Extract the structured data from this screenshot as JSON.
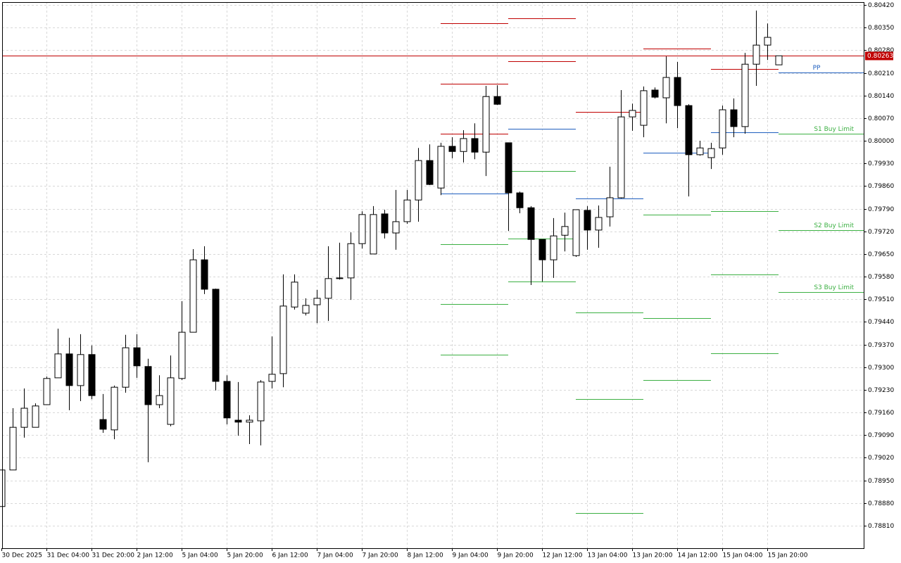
{
  "chart_data": {
    "type": "candlestick",
    "categories": [
      "30 Dec 2025",
      null,
      null,
      null,
      "31 Dec 04:00",
      null,
      null,
      null,
      "31 Dec 20:00",
      null,
      null,
      null,
      "2 Jan 12:00",
      null,
      null,
      null,
      "5 Jan 04:00",
      null,
      null,
      null,
      "5 Jan 20:00",
      null,
      null,
      null,
      "6 Jan 12:00",
      null,
      null,
      null,
      "7 Jan 04:00",
      null,
      null,
      null,
      "7 Jan 20:00",
      null,
      null,
      null,
      "8 Jan 12:00",
      null,
      null,
      null,
      "9 Jan 04:00",
      null,
      null,
      null,
      "9 Jan 20:00",
      null,
      null,
      null,
      "12 Jan 12:00",
      null,
      null,
      null,
      "13 Jan 04:00",
      null,
      null,
      null,
      "13 Jan 20:00",
      null,
      null,
      null,
      "14 Jan 12:00",
      null,
      null,
      null,
      "15 Jan 04:00",
      null,
      null,
      null,
      "15 Jan 20:00",
      null
    ],
    "open": [
      0.78869,
      0.78982,
      0.79114,
      0.79114,
      0.79184,
      0.79267,
      0.79341,
      0.79243,
      0.79339,
      0.79138,
      0.79106,
      0.79238,
      0.7936,
      0.79302,
      0.79184,
      0.79123,
      0.79265,
      0.79408,
      0.79632,
      0.79541,
      0.79256,
      0.79136,
      0.7913,
      0.79134,
      0.79256,
      0.7928,
      0.79486,
      0.79467,
      0.79493,
      0.79513,
      0.79574,
      0.79576,
      0.79682,
      0.7965,
      0.79774,
      0.79715,
      0.7975,
      0.79817,
      0.79939,
      0.79854,
      0.79983,
      0.79967,
      0.80007,
      0.79965,
      0.80137,
      0.79994,
      0.79839,
      0.79793,
      0.79695,
      0.79632,
      0.79708,
      0.79645,
      0.79785,
      0.79724,
      0.79765,
      0.79824,
      0.80074,
      0.80048,
      0.80157,
      0.80133,
      0.80196,
      0.80109,
      0.79957,
      0.79948,
      0.79978,
      0.80096,
      0.80044,
      0.80237,
      0.80296,
      0.80235
    ],
    "high": [
      0.78982,
      0.79173,
      0.79234,
      0.79188,
      0.79271,
      0.79419,
      0.79391,
      0.79402,
      0.79367,
      0.79217,
      0.79243,
      0.794,
      0.79402,
      0.79326,
      0.79275,
      0.79336,
      0.79504,
      0.79665,
      0.79674,
      0.79543,
      0.79275,
      0.79254,
      0.79151,
      0.7926,
      0.79395,
      0.79587,
      0.79587,
      0.79513,
      0.79539,
      0.79674,
      0.79685,
      0.79717,
      0.79782,
      0.79798,
      0.79787,
      0.79848,
      0.79848,
      0.79978,
      0.79989,
      0.79994,
      0.80011,
      0.80033,
      0.80054,
      0.8017,
      0.80172,
      0.79994,
      0.79843,
      0.79798,
      0.79695,
      0.79761,
      0.79778,
      0.79787,
      0.79798,
      0.798,
      0.7992,
      0.80157,
      0.80115,
      0.80168,
      0.80165,
      0.80261,
      0.80244,
      0.80113,
      0.8,
      0.79994,
      0.80109,
      0.80131,
      0.80272,
      0.80403,
      0.80363,
      0.80263
    ],
    "low": [
      0.78869,
      0.78982,
      0.79082,
      0.79114,
      0.79184,
      0.79267,
      0.79167,
      0.79195,
      0.79201,
      0.79097,
      0.79077,
      0.79221,
      0.79267,
      0.79006,
      0.79173,
      0.79117,
      0.7926,
      0.79408,
      0.79526,
      0.79228,
      0.79123,
      0.79088,
      0.79062,
      0.79058,
      0.79234,
      0.79238,
      0.79478,
      0.7946,
      0.79436,
      0.79443,
      0.79571,
      0.79508,
      0.79667,
      0.7965,
      0.79698,
      0.79663,
      0.79743,
      0.7975,
      0.79863,
      0.79832,
      0.79946,
      0.79933,
      0.79943,
      0.79891,
      0.80111,
      0.79721,
      0.79776,
      0.79554,
      0.79565,
      0.79576,
      0.79658,
      0.79641,
      0.79663,
      0.79669,
      0.79735,
      0.79822,
      0.80031,
      0.80011,
      0.80131,
      0.80054,
      0.80039,
      0.79828,
      0.79954,
      0.79913,
      0.79957,
      0.80011,
      0.80022,
      0.8017,
      0.8025,
      0.80235
    ],
    "close": [
      0.78982,
      0.79114,
      0.79173,
      0.7918,
      0.79265,
      0.79341,
      0.79243,
      0.79339,
      0.79212,
      0.79108,
      0.79238,
      0.7936,
      0.79304,
      0.79184,
      0.79212,
      0.79267,
      0.79408,
      0.79632,
      0.79541,
      0.79256,
      0.79143,
      0.7913,
      0.79136,
      0.79254,
      0.79278,
      0.79489,
      0.79563,
      0.79491,
      0.79513,
      0.79574,
      0.79576,
      0.79682,
      0.79772,
      0.79772,
      0.79715,
      0.7975,
      0.79817,
      0.79939,
      0.79865,
      0.79983,
      0.79967,
      0.80007,
      0.79965,
      0.80137,
      0.80113,
      0.79839,
      0.79793,
      0.79695,
      0.79632,
      0.79706,
      0.79735,
      0.79787,
      0.79724,
      0.79763,
      0.79824,
      0.80074,
      0.80094,
      0.80155,
      0.80135,
      0.80196,
      0.80109,
      0.79957,
      0.79978,
      0.79976,
      0.80096,
      0.80044,
      0.80237,
      0.80296,
      0.8032,
      0.80263
    ],
    "up_color": "#ffffff",
    "down_color": "#000000",
    "ylim": [
      0.7874,
      0.80429
    ],
    "yticks": [
      {
        "value": 0.8042,
        "label": "0.80420"
      },
      {
        "value": 0.8035,
        "label": "0.80350"
      },
      {
        "value": 0.8028,
        "label": "0.80280"
      },
      {
        "value": 0.8021,
        "label": "0.80210"
      },
      {
        "value": 0.8014,
        "label": "0.80140"
      },
      {
        "value": 0.8007,
        "label": "0.80070"
      },
      {
        "value": 0.8,
        "label": "0.80000"
      },
      {
        "value": 0.7993,
        "label": "0.79930"
      },
      {
        "value": 0.7986,
        "label": "0.79860"
      },
      {
        "value": 0.7979,
        "label": "0.79790"
      },
      {
        "value": 0.7972,
        "label": "0.79720"
      },
      {
        "value": 0.7965,
        "label": "0.79650"
      },
      {
        "value": 0.7958,
        "label": "0.79580"
      },
      {
        "value": 0.7951,
        "label": "0.79510"
      },
      {
        "value": 0.7944,
        "label": "0.79440"
      },
      {
        "value": 0.7937,
        "label": "0.79370"
      },
      {
        "value": 0.793,
        "label": "0.79300"
      },
      {
        "value": 0.7923,
        "label": "0.79230"
      },
      {
        "value": 0.7916,
        "label": "0.79160"
      },
      {
        "value": 0.7909,
        "label": "0.79090"
      },
      {
        "value": 0.7902,
        "label": "0.79020"
      },
      {
        "value": 0.7895,
        "label": "0.78950"
      },
      {
        "value": 0.7888,
        "label": "0.78880"
      },
      {
        "value": 0.7881,
        "label": "0.78810"
      }
    ],
    "grid": true,
    "last_price": {
      "value": 0.80263,
      "label": "0.80263"
    },
    "last_price_color": "#c00000",
    "resistance_color": "#c00000",
    "pivot_color": "#1f5fbf",
    "support_color": "#3cb043",
    "levels": [
      {
        "start": 39,
        "end": 45,
        "resistance": [
          0.80363,
          0.80176,
          0.80022
        ],
        "pivot": 0.79837,
        "support": [
          0.7968,
          0.79495,
          0.79339
        ]
      },
      {
        "start": 45,
        "end": 51,
        "resistance": [
          0.80379,
          0.80246
        ],
        "pivot": 0.80037,
        "support": [
          0.79906,
          0.79698,
          0.79565
        ]
      },
      {
        "start": 51,
        "end": 57,
        "resistance": [
          0.80089
        ],
        "pivot": 0.79822,
        "support": [
          0.79469,
          0.79201,
          0.78849
        ]
      },
      {
        "start": 57,
        "end": 63,
        "resistance": [
          0.80285
        ],
        "pivot": 0.79963,
        "support": [
          0.79772,
          0.79452,
          0.7926
        ]
      },
      {
        "start": 63,
        "end": 69,
        "resistance": [
          0.80222
        ],
        "pivot": 0.80026,
        "support": [
          0.79782,
          0.79587,
          0.79343
        ]
      },
      {
        "start": 69,
        "pivot": 0.80211,
        "pivot_label": "PP",
        "support": [
          0.80022,
          0.79724,
          0.79532
        ],
        "support_labels": [
          "S1 Buy Limit",
          "S2 Buy Limit",
          "S3 Buy Limit"
        ]
      }
    ]
  }
}
